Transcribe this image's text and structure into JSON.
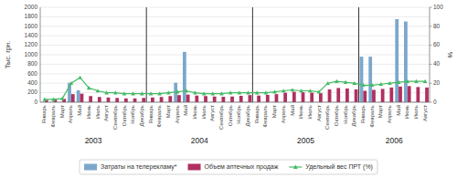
{
  "chart_data": {
    "type": "bar",
    "categories": [
      "Январь",
      "Февраль",
      "Март",
      "Апрель",
      "Май",
      "Июнь",
      "Июль",
      "Август",
      "Сентябрь",
      "Октябрь",
      "Ноябрь",
      "Декабрь",
      "Январь",
      "Февраль",
      "Март",
      "Апрель",
      "Май",
      "Июнь",
      "Июль",
      "Август",
      "Сентябрь",
      "Октябрь",
      "Ноябрь",
      "Декабрь",
      "Январь",
      "Февраль",
      "Март",
      "Апрель",
      "Май",
      "Июнь",
      "Июль",
      "Август",
      "Сентябрь",
      "Октябрь",
      "Ноябрь",
      "Декабрь",
      "Январь",
      "Февраль",
      "Март",
      "Апрель",
      "Май",
      "Июнь",
      "Июль",
      "Август"
    ],
    "series": [
      {
        "name": "Затраты на телерекламу*",
        "type": "bar",
        "color": "#7ba7cc",
        "values": [
          5,
          5,
          5,
          410,
          250,
          5,
          5,
          5,
          5,
          5,
          5,
          5,
          5,
          5,
          5,
          410,
          1060,
          5,
          5,
          5,
          5,
          5,
          5,
          5,
          5,
          5,
          5,
          5,
          5,
          5,
          5,
          5,
          5,
          5,
          5,
          5,
          960,
          960,
          5,
          5,
          1750,
          1700,
          5,
          5
        ]
      },
      {
        "name": "Объем аптечных продаж",
        "type": "bar",
        "color": "#b03060",
        "values": [
          50,
          55,
          70,
          170,
          180,
          130,
          110,
          100,
          90,
          80,
          80,
          90,
          100,
          110,
          130,
          150,
          160,
          140,
          130,
          120,
          115,
          120,
          135,
          150,
          140,
          155,
          170,
          200,
          220,
          210,
          200,
          190,
          270,
          300,
          290,
          270,
          240,
          260,
          280,
          310,
          330,
          340,
          320,
          310
        ]
      },
      {
        "name": "Удельный вес ПРТ (%)",
        "type": "line",
        "axis": "y2",
        "color": "#44bb66",
        "marker": "triangle",
        "values": [
          3,
          3,
          4,
          20,
          26,
          15,
          12,
          10,
          10,
          9,
          9,
          9,
          9,
          9,
          10,
          11,
          12,
          10,
          9,
          9,
          9,
          10,
          10,
          10,
          10,
          10,
          11,
          12,
          13,
          12,
          12,
          11,
          20,
          22,
          21,
          20,
          18,
          18,
          19,
          20,
          21,
          22,
          22,
          22
        ]
      }
    ],
    "y_label": "Тыс. грн.",
    "y2_label": "%",
    "ylim": [
      0,
      2000
    ],
    "yticks": [
      0,
      200,
      400,
      600,
      800,
      1000,
      1200,
      1400,
      1600,
      1800,
      2000
    ],
    "y2lim": [
      0,
      100
    ],
    "y2ticks": [
      0,
      20,
      40,
      60,
      80,
      100
    ],
    "annotations": [
      {
        "text": "2003",
        "x": 5.5
      },
      {
        "text": "2004",
        "x": 17.5
      },
      {
        "text": "2005",
        "x": 29.5
      },
      {
        "text": "2006",
        "x": 39.5
      }
    ],
    "grid": true,
    "legend": "bottom"
  }
}
